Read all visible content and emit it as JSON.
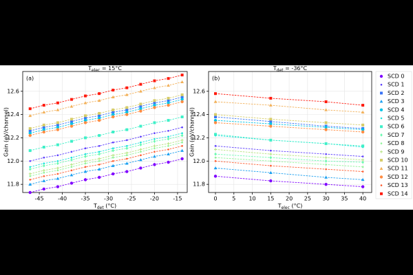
{
  "chart_data": [
    {
      "type": "line",
      "panel_label": "(a)",
      "title": [
        "T",
        "elec",
        " = 15°C"
      ],
      "xlabel": [
        "T",
        "det",
        " (°C)"
      ],
      "ylabel": "Gain (eV/channel)",
      "xlim": [
        -48.6,
        -12.9
      ],
      "ylim": [
        11.73,
        12.77
      ],
      "xticks": [
        -45,
        -40,
        -35,
        -30,
        -25,
        -20,
        -15
      ],
      "yticks": [
        11.8,
        {
          "value": 12,
          "label": "12.0"
        },
        12.2,
        12.4,
        12.6
      ],
      "grid": true,
      "legend": "right",
      "line_style": "dashed",
      "x": [
        -47,
        -44,
        -41,
        -38,
        -35,
        -32,
        -29,
        -26,
        -23,
        -20,
        -17,
        -14
      ],
      "series": [
        {
          "name": "SCD 0",
          "color": "#7f00ff",
          "marker": "circle",
          "values": [
            11.73,
            11.76,
            11.78,
            11.81,
            11.84,
            11.86,
            11.89,
            11.91,
            11.94,
            11.97,
            11.99,
            12.02
          ]
        },
        {
          "name": "SCD 1",
          "color": "#5b3cfd",
          "marker": "point",
          "values": [
            12.0,
            12.03,
            12.05,
            12.08,
            12.11,
            12.13,
            12.16,
            12.18,
            12.21,
            12.24,
            12.26,
            12.29
          ]
        },
        {
          "name": "SCD 2",
          "color": "#3a74f6",
          "marker": "square",
          "values": [
            12.26,
            12.29,
            12.31,
            12.34,
            12.37,
            12.39,
            12.42,
            12.44,
            12.47,
            12.5,
            12.52,
            12.55
          ]
        },
        {
          "name": "SCD 3",
          "color": "#1a9ff0",
          "marker": "triangle",
          "values": [
            11.8,
            11.83,
            11.85,
            11.88,
            11.91,
            11.93,
            11.96,
            11.98,
            12.01,
            12.04,
            12.06,
            12.09
          ]
        },
        {
          "name": "SCD 4",
          "color": "#04c4e6",
          "marker": "circle",
          "values": [
            12.24,
            12.27,
            12.29,
            12.32,
            12.35,
            12.37,
            12.4,
            12.42,
            12.45,
            12.48,
            12.5,
            12.53
          ]
        },
        {
          "name": "SCD 5",
          "color": "#1ce3dc",
          "marker": "point",
          "values": [
            11.95,
            11.98,
            12.0,
            12.03,
            12.06,
            12.08,
            12.11,
            12.13,
            12.16,
            12.19,
            12.21,
            12.24
          ]
        },
        {
          "name": "SCD 6",
          "color": "#3ef0c8",
          "marker": "square",
          "values": [
            12.09,
            12.12,
            12.14,
            12.17,
            12.2,
            12.22,
            12.25,
            12.27,
            12.3,
            12.33,
            12.35,
            12.38
          ]
        },
        {
          "name": "SCD 7",
          "color": "#6afab0",
          "marker": "diamond",
          "values": [
            11.93,
            11.96,
            11.98,
            12.01,
            12.04,
            12.06,
            12.09,
            12.11,
            12.14,
            12.17,
            12.19,
            12.22
          ]
        },
        {
          "name": "SCD 8",
          "color": "#91f49a",
          "marker": "point",
          "values": [
            11.87,
            11.9,
            11.92,
            11.95,
            11.98,
            12.0,
            12.03,
            12.05,
            12.08,
            12.11,
            12.13,
            12.16
          ]
        },
        {
          "name": "SCD 9",
          "color": "#b4e47e",
          "marker": "plus",
          "values": [
            11.89,
            11.92,
            11.94,
            11.97,
            12.0,
            12.02,
            12.05,
            12.07,
            12.1,
            12.13,
            12.15,
            12.18
          ]
        },
        {
          "name": "SCD 10",
          "color": "#d6cc69",
          "marker": "square",
          "values": [
            12.28,
            12.31,
            12.33,
            12.36,
            12.39,
            12.41,
            12.44,
            12.46,
            12.49,
            12.52,
            12.54,
            12.57
          ]
        },
        {
          "name": "SCD 11",
          "color": "#f2b058",
          "marker": "triangle",
          "values": [
            12.39,
            12.42,
            12.44,
            12.47,
            12.5,
            12.52,
            12.55,
            12.57,
            12.6,
            12.63,
            12.65,
            12.68
          ]
        },
        {
          "name": "SCD 12",
          "color": "#ff8c42",
          "marker": "circle",
          "values": [
            12.22,
            12.25,
            12.27,
            12.3,
            12.33,
            12.35,
            12.38,
            12.4,
            12.43,
            12.46,
            12.48,
            12.51
          ]
        },
        {
          "name": "SCD 13",
          "color": "#ff5c2f",
          "marker": "point",
          "values": [
            11.84,
            11.87,
            11.89,
            11.92,
            11.95,
            11.97,
            12.0,
            12.02,
            12.05,
            12.08,
            12.1,
            12.13
          ]
        },
        {
          "name": "SCD 14",
          "color": "#ff1a0d",
          "marker": "square",
          "values": [
            12.45,
            12.48,
            12.5,
            12.53,
            12.56,
            12.58,
            12.61,
            12.63,
            12.66,
            12.69,
            12.71,
            12.74
          ]
        }
      ]
    },
    {
      "type": "line",
      "panel_label": "(b)",
      "title": [
        "T",
        "det",
        " = -36°C"
      ],
      "xlabel": [
        "T",
        "elec",
        " (°C)"
      ],
      "ylabel": "Gain (eV/channel)",
      "xlim": [
        -1.87,
        42.4
      ],
      "ylim": [
        11.73,
        12.77
      ],
      "xticks": [
        0,
        5,
        10,
        15,
        20,
        25,
        30,
        35,
        40
      ],
      "yticks": [
        11.8,
        {
          "value": 12,
          "label": "12.0"
        },
        12.2,
        12.4,
        12.6
      ],
      "grid": true,
      "line_style": "dashed",
      "x": [
        0,
        15,
        30,
        40
      ],
      "series": [
        {
          "color": "#7f00ff",
          "marker": "circle",
          "values": [
            11.87,
            11.83,
            11.8,
            11.78
          ]
        },
        {
          "color": "#5b3cfd",
          "marker": "point",
          "values": [
            12.13,
            12.09,
            12.06,
            12.04
          ]
        },
        {
          "color": "#3a74f6",
          "marker": "square",
          "values": [
            12.38,
            12.34,
            12.3,
            12.28
          ]
        },
        {
          "color": "#1a9ff0",
          "marker": "triangle",
          "values": [
            11.94,
            11.9,
            11.86,
            11.84
          ]
        },
        {
          "color": "#04c4e6",
          "marker": "circle",
          "values": [
            12.35,
            12.32,
            12.29,
            12.27
          ]
        },
        {
          "color": "#1ce3dc",
          "marker": "point",
          "values": [
            12.22,
            12.18,
            12.15,
            12.12
          ]
        },
        {
          "color": "#3ef0c8",
          "marker": "square",
          "values": [
            12.23,
            12.18,
            12.15,
            12.13
          ]
        },
        {
          "color": "#6afab0",
          "marker": "diamond",
          "values": [
            12.06,
            12.03,
            12.0,
            11.99
          ]
        },
        {
          "color": "#91f49a",
          "marker": "point",
          "values": [
            12.03,
            12.0,
            11.97,
            11.95
          ]
        },
        {
          "color": "#b4e47e",
          "marker": "plus",
          "values": [
            12.1,
            12.06,
            12.03,
            12.01
          ]
        },
        {
          "color": "#d6cc69",
          "marker": "square",
          "values": [
            12.4,
            12.36,
            12.33,
            12.31
          ]
        },
        {
          "color": "#f2b058",
          "marker": "triangle",
          "values": [
            12.51,
            12.48,
            12.44,
            12.42
          ]
        },
        {
          "color": "#ff8c42",
          "marker": "circle",
          "values": [
            12.33,
            12.3,
            12.27,
            12.25
          ]
        },
        {
          "color": "#ff5c2f",
          "marker": "point",
          "values": [
            12.0,
            11.96,
            11.93,
            11.91
          ]
        },
        {
          "color": "#ff1a0d",
          "marker": "square",
          "values": [
            12.58,
            12.54,
            12.51,
            12.48
          ]
        }
      ]
    }
  ]
}
